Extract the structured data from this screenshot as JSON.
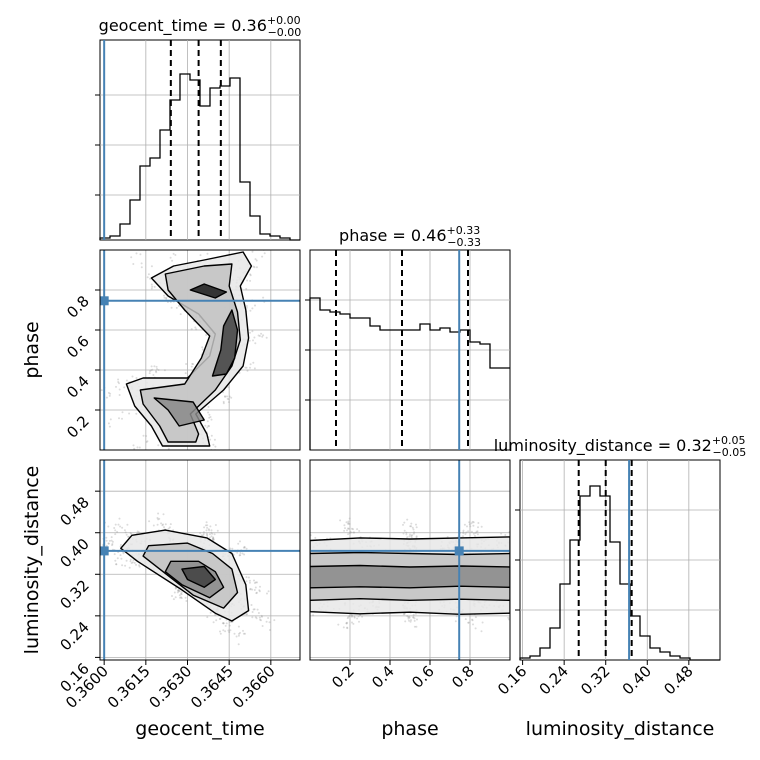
{
  "chart_data": {
    "type": "corner",
    "parameters": [
      "geocent_time",
      "phase",
      "luminosity_distance"
    ],
    "truths": {
      "geocent_time": 0.36,
      "phase": 0.746,
      "luminosity_distance": 0.365
    },
    "titles": [
      {
        "param": "geocent_time",
        "text": "geocent_time = 0.36",
        "sup": "+0.00",
        "sub": "−0.00"
      },
      {
        "param": "phase",
        "text": "phase = 0.46",
        "sup": "+0.33",
        "sub": "−0.33"
      },
      {
        "param": "luminosity_distance",
        "text": "luminosity_distance = 0.32",
        "sup": "+0.05",
        "sub": "−0.05"
      }
    ],
    "axis_labels": {
      "x": [
        "geocent_time",
        "phase",
        "luminosity_distance"
      ],
      "y": [
        "phase",
        "luminosity_distance"
      ]
    },
    "ranges": {
      "geocent_time": [
        0.35985,
        0.36705
      ],
      "phase": [
        0.0,
        1.0
      ],
      "luminosity_distance": [
        0.155,
        0.54
      ]
    },
    "ticks": {
      "geocent_time": {
        "values": [
          0.36,
          0.3615,
          0.363,
          0.3645,
          0.366
        ],
        "labels": [
          "0.3600",
          "0.3615",
          "0.3630",
          "0.3645",
          "0.3660"
        ]
      },
      "phase": {
        "values": [
          0.2,
          0.4,
          0.6,
          0.8
        ],
        "labels": [
          "0.2",
          "0.4",
          "0.6",
          "0.8"
        ]
      },
      "luminosity_distance": {
        "values": [
          0.16,
          0.24,
          0.32,
          0.4,
          0.48
        ],
        "labels": [
          "0.16",
          "0.24",
          "0.32",
          "0.40",
          "0.48"
        ]
      }
    },
    "histograms": {
      "geocent_time": {
        "edges_start": 0.35985,
        "bin_width": 0.00036,
        "quantiles": [
          0.3624,
          0.3634,
          0.3642
        ],
        "counts": [
          0.01,
          0.02,
          0.08,
          0.2,
          0.37,
          0.41,
          0.55,
          0.7,
          0.83,
          0.8,
          0.67,
          0.76,
          0.77,
          0.81,
          0.29,
          0.12,
          0.03,
          0.02,
          0.01,
          0.0
        ]
      },
      "phase": {
        "edges_start": 0.0,
        "bin_width": 0.05,
        "quantiles": [
          0.13,
          0.46,
          0.79
        ],
        "counts": [
          0.76,
          0.7,
          0.69,
          0.68,
          0.66,
          0.66,
          0.62,
          0.6,
          0.6,
          0.6,
          0.6,
          0.63,
          0.6,
          0.61,
          0.59,
          0.6,
          0.54,
          0.53,
          0.41,
          0.41
        ]
      },
      "luminosity_distance": {
        "edges_start": 0.155,
        "bin_width": 0.01925,
        "quantiles": [
          0.268,
          0.32,
          0.37
        ],
        "counts": [
          0.01,
          0.02,
          0.06,
          0.16,
          0.38,
          0.6,
          0.82,
          0.87,
          0.82,
          0.59,
          0.38,
          0.22,
          0.12,
          0.06,
          0.04,
          0.02,
          0.01,
          0.0,
          0.0,
          0.0
        ]
      }
    },
    "joint_2d": [
      {
        "x": "geocent_time",
        "y": "phase",
        "contours": [
          [
            [
              0.3621,
              0.02
            ],
            [
              0.3617,
              0.12
            ],
            [
              0.3611,
              0.22
            ],
            [
              0.3608,
              0.33
            ],
            [
              0.3614,
              0.36
            ],
            [
              0.363,
              0.36
            ],
            [
              0.3638,
              0.47
            ],
            [
              0.364,
              0.58
            ],
            [
              0.3634,
              0.68
            ],
            [
              0.3623,
              0.77
            ],
            [
              0.3617,
              0.86
            ],
            [
              0.3625,
              0.92
            ],
            [
              0.3636,
              0.95
            ],
            [
              0.365,
              0.99
            ],
            [
              0.3653,
              0.92
            ],
            [
              0.3649,
              0.82
            ],
            [
              0.3651,
              0.7
            ],
            [
              0.3652,
              0.56
            ],
            [
              0.365,
              0.42
            ],
            [
              0.3643,
              0.3
            ],
            [
              0.3633,
              0.18
            ],
            [
              0.3637,
              0.08
            ],
            [
              0.3638,
              0.02
            ]
          ],
          [
            [
              0.3623,
              0.04
            ],
            [
              0.362,
              0.12
            ],
            [
              0.3614,
              0.23
            ],
            [
              0.3613,
              0.3
            ],
            [
              0.3629,
              0.33
            ],
            [
              0.3635,
              0.46
            ],
            [
              0.3638,
              0.57
            ],
            [
              0.3629,
              0.7
            ],
            [
              0.3623,
              0.8
            ],
            [
              0.3622,
              0.88
            ],
            [
              0.3636,
              0.92
            ],
            [
              0.3646,
              0.93
            ],
            [
              0.3645,
              0.82
            ],
            [
              0.3648,
              0.69
            ],
            [
              0.3649,
              0.55
            ],
            [
              0.3646,
              0.42
            ],
            [
              0.364,
              0.3
            ],
            [
              0.3631,
              0.18
            ],
            [
              0.3634,
              0.08
            ],
            [
              0.3633,
              0.04
            ]
          ],
          [
            [
              0.3627,
              0.12
            ],
            [
              0.3623,
              0.2
            ],
            [
              0.3618,
              0.26
            ],
            [
              0.3632,
              0.24
            ],
            [
              0.3636,
              0.15
            ]
          ],
          [
            [
              0.3639,
              0.37
            ],
            [
              0.3642,
              0.5
            ],
            [
              0.3643,
              0.62
            ],
            [
              0.3646,
              0.7
            ],
            [
              0.3648,
              0.6
            ],
            [
              0.3647,
              0.46
            ],
            [
              0.3644,
              0.38
            ]
          ],
          [
            [
              0.3631,
              0.8
            ],
            [
              0.364,
              0.76
            ],
            [
              0.3644,
              0.79
            ],
            [
              0.3636,
              0.83
            ]
          ]
        ]
      },
      {
        "x": "geocent_time",
        "y": "luminosity_distance",
        "contours": [
          [
            [
              0.361,
              0.395
            ],
            [
              0.3622,
              0.405
            ],
            [
              0.3637,
              0.39
            ],
            [
              0.3646,
              0.36
            ],
            [
              0.3651,
              0.3
            ],
            [
              0.3652,
              0.25
            ],
            [
              0.3646,
              0.23
            ],
            [
              0.364,
              0.245
            ],
            [
              0.3628,
              0.29
            ],
            [
              0.3612,
              0.345
            ],
            [
              0.3606,
              0.37
            ]
          ],
          [
            [
              0.3616,
              0.375
            ],
            [
              0.363,
              0.38
            ],
            [
              0.3639,
              0.36
            ],
            [
              0.3646,
              0.33
            ],
            [
              0.3648,
              0.285
            ],
            [
              0.3643,
              0.255
            ],
            [
              0.3632,
              0.28
            ],
            [
              0.362,
              0.33
            ],
            [
              0.3614,
              0.355
            ]
          ],
          [
            [
              0.3624,
              0.345
            ],
            [
              0.3634,
              0.345
            ],
            [
              0.364,
              0.325
            ],
            [
              0.3643,
              0.295
            ],
            [
              0.3638,
              0.275
            ],
            [
              0.3628,
              0.3
            ],
            [
              0.3622,
              0.325
            ]
          ],
          [
            [
              0.3628,
              0.33
            ],
            [
              0.3636,
              0.335
            ],
            [
              0.364,
              0.31
            ],
            [
              0.3636,
              0.295
            ],
            [
              0.363,
              0.31
            ]
          ]
        ]
      },
      {
        "x": "phase",
        "y": "luminosity_distance",
        "contours": [
          [
            [
              0.0,
              0.385
            ],
            [
              0.25,
              0.39
            ],
            [
              0.5,
              0.388
            ],
            [
              0.75,
              0.39
            ],
            [
              1.0,
              0.392
            ],
            [
              1.0,
              0.245
            ],
            [
              0.75,
              0.243
            ],
            [
              0.5,
              0.247
            ],
            [
              0.25,
              0.244
            ],
            [
              0.0,
              0.248
            ]
          ],
          [
            [
              0.0,
              0.36
            ],
            [
              0.25,
              0.362
            ],
            [
              0.5,
              0.36
            ],
            [
              0.75,
              0.358
            ],
            [
              1.0,
              0.36
            ],
            [
              1.0,
              0.27
            ],
            [
              0.75,
              0.272
            ],
            [
              0.5,
              0.27
            ],
            [
              0.25,
              0.273
            ],
            [
              0.0,
              0.27
            ]
          ],
          [
            [
              0.0,
              0.335
            ],
            [
              0.25,
              0.337
            ],
            [
              0.5,
              0.334
            ],
            [
              0.75,
              0.336
            ],
            [
              1.0,
              0.334
            ],
            [
              1.0,
              0.295
            ],
            [
              0.75,
              0.297
            ],
            [
              0.5,
              0.294
            ],
            [
              0.25,
              0.296
            ],
            [
              0.0,
              0.294
            ]
          ]
        ]
      }
    ]
  }
}
